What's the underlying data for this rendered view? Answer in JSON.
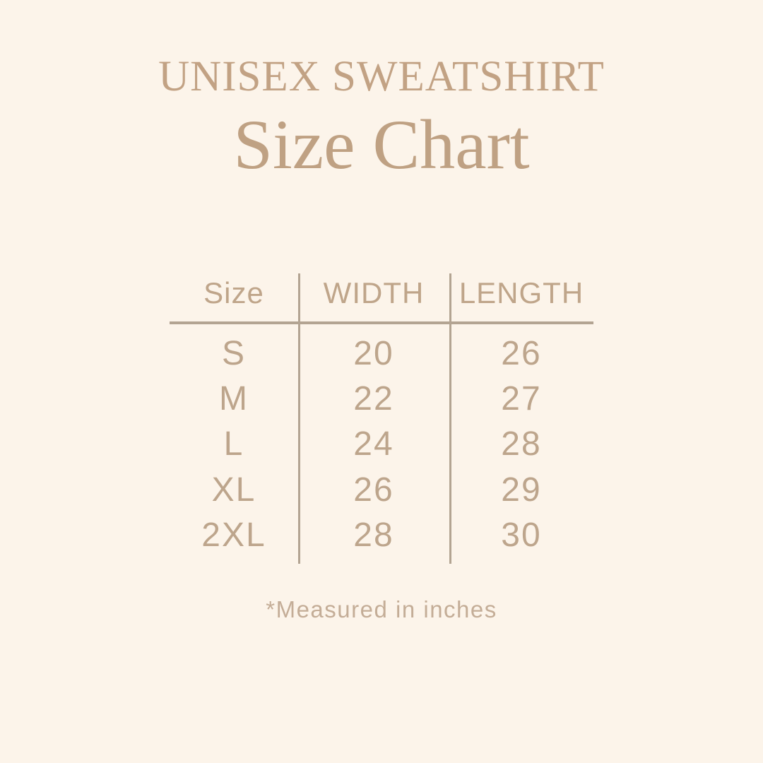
{
  "page": {
    "background_color": "#fcf4ea",
    "accent_text_color": "#c2a284",
    "table_text_color": "#bda58c",
    "line_color": "#b3a492"
  },
  "header": {
    "title": "UNISEX SWEATSHIRT",
    "subtitle": "Size Chart"
  },
  "footnote": {
    "text": "*Measured in inches"
  },
  "chart_data": {
    "type": "table",
    "title": "UNISEX SWEATSHIRT Size Chart",
    "columns": [
      "Size",
      "WIDTH",
      "LENGTH"
    ],
    "rows": [
      [
        "S",
        "20",
        "26"
      ],
      [
        "M",
        "22",
        "27"
      ],
      [
        "L",
        "24",
        "28"
      ],
      [
        "XL",
        "26",
        "29"
      ],
      [
        "2XL",
        "28",
        "30"
      ]
    ],
    "units": "inches",
    "layout": "3-column table, light tan rules: 2 vertical dividers, 1 horizontal rule under header"
  }
}
